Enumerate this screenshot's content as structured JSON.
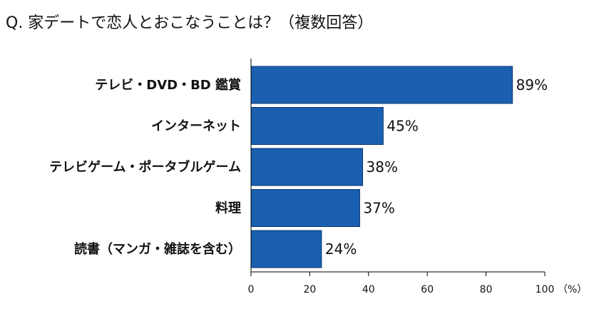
{
  "chart_data": {
    "type": "bar",
    "orientation": "horizontal",
    "title": "Q. 家デートで恋人とおこなうことは？（複数回答）",
    "categories": [
      "テレビ・DVD・BD 鑑賞",
      "インターネット",
      "テレビゲーム・ポータブルゲーム",
      "料理",
      "読書（マンガ・雑誌を含む）"
    ],
    "values": [
      89,
      45,
      38,
      37,
      24
    ],
    "value_labels": [
      "89%",
      "45%",
      "38%",
      "37%",
      "24%"
    ],
    "xlim": [
      0,
      100
    ],
    "xticks": [
      "0",
      "20",
      "40",
      "60",
      "80",
      "100"
    ],
    "xunit": "（%）",
    "grid": false,
    "legend": "none",
    "colors": {
      "bar": "#1a5fb0",
      "bar_border": "#0d3470",
      "axis": "#000000"
    }
  }
}
